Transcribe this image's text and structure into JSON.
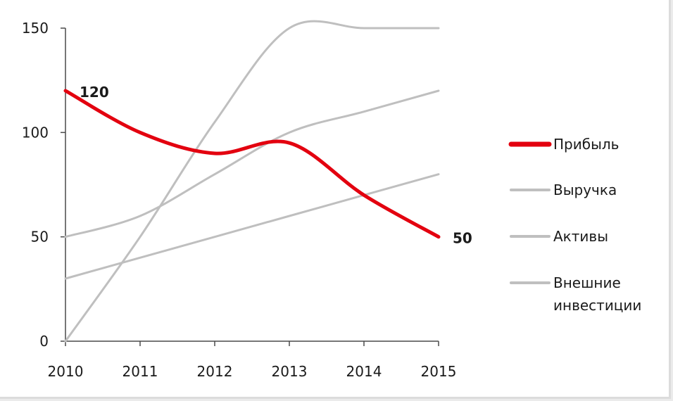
{
  "chart_data": {
    "type": "line",
    "x": [
      2010,
      2011,
      2012,
      2013,
      2014,
      2015
    ],
    "x_tick_labels": [
      "2010",
      "2011",
      "2012",
      "2013",
      "2014",
      "2015"
    ],
    "y_tick_labels": [
      "0",
      "50",
      "100",
      "150"
    ],
    "y_ticks": [
      0,
      50,
      100,
      150
    ],
    "ylim": [
      0,
      150
    ],
    "grid": false,
    "smooth": true,
    "legend_position": "right",
    "series": [
      {
        "name": "Внешние инвестиции",
        "values": [
          0,
          50,
          105,
          150,
          150,
          150
        ],
        "color": "#bfbfbf",
        "legend_lines": [
          "Внешние",
          "инвестиции"
        ]
      },
      {
        "name": "Активы",
        "values": [
          50,
          60,
          80,
          100,
          110,
          120
        ],
        "color": "#bfbfbf",
        "legend_lines": [
          "Активы"
        ]
      },
      {
        "name": "Выручка",
        "values": [
          30,
          40,
          50,
          60,
          70,
          80
        ],
        "color": "#bfbfbf",
        "legend_lines": [
          "Выручка"
        ]
      },
      {
        "name": "Прибыль",
        "values": [
          120,
          100,
          90,
          95,
          70,
          50
        ],
        "color": "#e3000f",
        "legend_lines": [
          "Прибыль"
        ],
        "data_labels": [
          {
            "index": 0,
            "text": "120"
          },
          {
            "index": 5,
            "text": "50"
          }
        ]
      }
    ],
    "legend_order": [
      "Прибыль",
      "Выручка",
      "Активы",
      "Внешние инвестиции"
    ]
  }
}
